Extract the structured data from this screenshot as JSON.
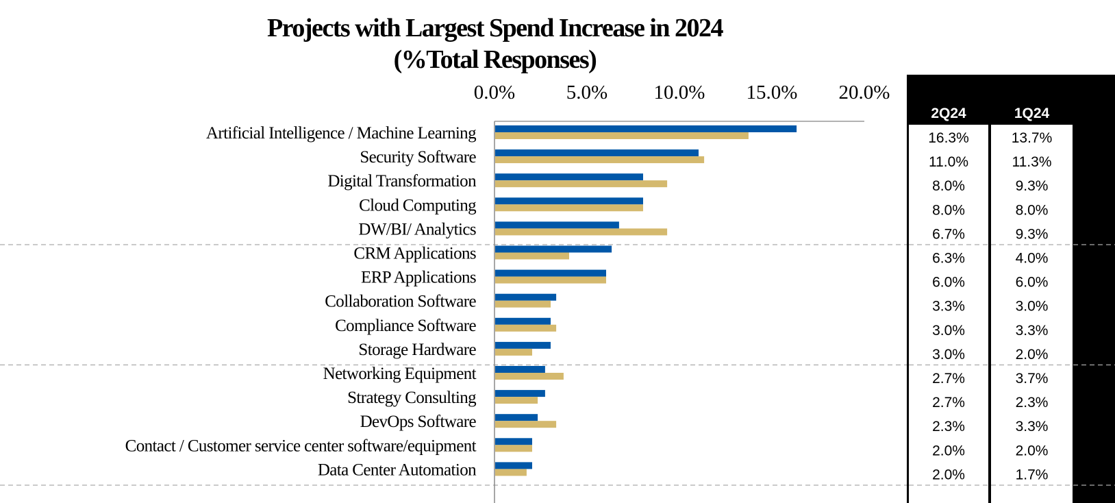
{
  "chart_data": {
    "type": "bar",
    "title": "Projects with Largest Spend Increase in 2024",
    "subtitle": "(%Total Responses)",
    "categories": [
      "Artificial Intelligence / Machine Learning",
      "Security Software",
      "Digital Transformation",
      "Cloud Computing",
      "DW/BI/ Analytics",
      "CRM Applications",
      "ERP Applications",
      "Collaboration Software",
      "Compliance Software",
      "Storage Hardware",
      "Networking Equipment",
      "Strategy Consulting",
      "DevOps Software",
      "Contact / Customer service center software/equipment",
      "Data Center Automation"
    ],
    "series": [
      {
        "name": "2Q24",
        "color": "#0057A8",
        "values": [
          16.3,
          11.0,
          8.0,
          8.0,
          6.7,
          6.3,
          6.0,
          3.3,
          3.0,
          3.0,
          2.7,
          2.7,
          2.3,
          2.0,
          2.0
        ],
        "labels": [
          "16.3%",
          "11.0%",
          "8.0%",
          "8.0%",
          "6.7%",
          "6.3%",
          "6.0%",
          "3.3%",
          "3.0%",
          "3.0%",
          "2.7%",
          "2.7%",
          "2.3%",
          "2.0%",
          "2.0%"
        ]
      },
      {
        "name": "1Q24",
        "color": "#D4B96E",
        "values": [
          13.7,
          11.3,
          9.3,
          8.0,
          9.3,
          4.0,
          6.0,
          3.0,
          3.3,
          2.0,
          3.7,
          2.3,
          3.3,
          2.0,
          1.7
        ],
        "labels": [
          "13.7%",
          "11.3%",
          "9.3%",
          "8.0%",
          "9.3%",
          "4.0%",
          "6.0%",
          "3.0%",
          "3.3%",
          "2.0%",
          "3.7%",
          "2.3%",
          "3.3%",
          "2.0%",
          "1.7%"
        ]
      }
    ],
    "xlim": [
      0,
      20
    ],
    "xticks": [
      0,
      5,
      10,
      15,
      20
    ],
    "xtick_labels": [
      "0.0%",
      "5.0%",
      "10.0%",
      "15.0%",
      "20.0%"
    ],
    "orientation": "horizontal",
    "axis_position": "top",
    "group_separators_after": [
      5,
      10,
      15
    ]
  }
}
